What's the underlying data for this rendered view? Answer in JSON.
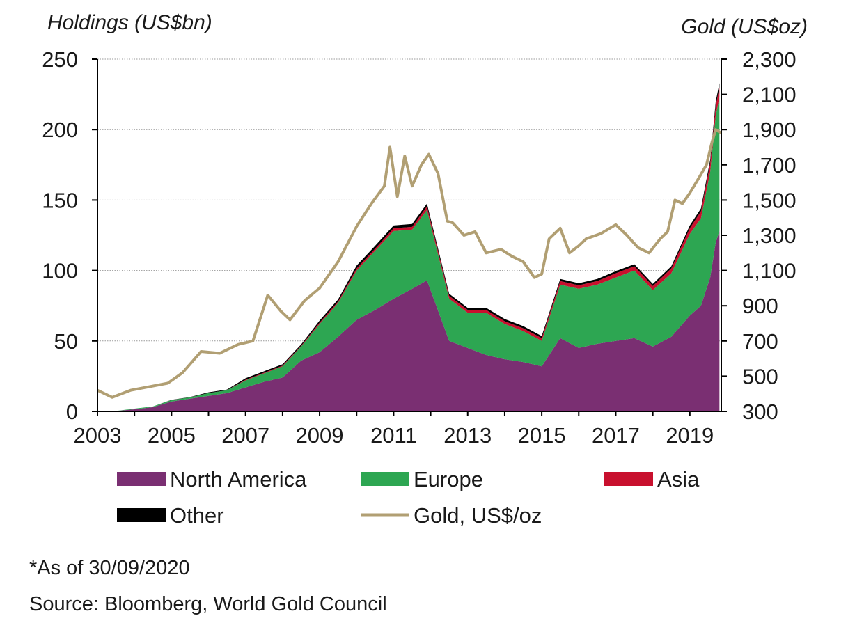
{
  "colors": {
    "north_america": "#7a2f72",
    "europe": "#2da652",
    "asia": "#c8102e",
    "other": "#000000",
    "gold": "#b19f73",
    "grid": "#9a9a9a",
    "axis": "#000000"
  },
  "notes": {
    "asof": "*As of 30/09/2020",
    "source": "Source: Bloomberg, World Gold Council"
  },
  "chart_data": {
    "type": "area",
    "stacked": true,
    "left_axis_title": "Holdings (US$bn)",
    "right_axis_title": "Gold (US$oz)",
    "x_ticks": [
      "2003",
      "2005",
      "2007",
      "2009",
      "2011",
      "2013",
      "2015",
      "2017",
      "2019"
    ],
    "y_left_ticks": [
      "0",
      "50",
      "100",
      "150",
      "200",
      "250"
    ],
    "y_right_ticks": [
      "300",
      "500",
      "700",
      "900",
      "1,100",
      "1,300",
      "1,500",
      "1,700",
      "1,900",
      "2,100",
      "2,300"
    ],
    "y_left_range": [
      0,
      250
    ],
    "y_right_range": [
      300,
      2300
    ],
    "x_range": [
      2003.0,
      2019.85
    ],
    "grid": "horizontal dotted",
    "legend_position": "bottom",
    "x": [
      2003.0,
      2003.5,
      2004.0,
      2004.5,
      2005.0,
      2005.5,
      2006.0,
      2006.5,
      2007.0,
      2007.5,
      2008.0,
      2008.5,
      2009.0,
      2009.5,
      2010.0,
      2010.5,
      2011.0,
      2011.5,
      2011.9,
      2012.5,
      2013.0,
      2013.5,
      2014.0,
      2014.5,
      2015.0,
      2015.5,
      2016.0,
      2016.5,
      2017.0,
      2017.5,
      2018.0,
      2018.5,
      2019.0,
      2019.3,
      2019.55,
      2019.7,
      2019.8
    ],
    "series": [
      {
        "name": "North America",
        "values": [
          0,
          0.3,
          1.5,
          3,
          7,
          9,
          11,
          13,
          17,
          21,
          24,
          36,
          42,
          53,
          65,
          72,
          80,
          87,
          93,
          50,
          45,
          40,
          37,
          35,
          32,
          52,
          45,
          48,
          50,
          52,
          46,
          53,
          68,
          75,
          95,
          120,
          128
        ]
      },
      {
        "name": "Europe",
        "values": [
          0,
          0,
          0.5,
          0.5,
          1,
          1,
          2,
          2,
          5,
          6,
          8,
          10,
          20,
          24,
          35,
          42,
          48,
          42,
          50,
          30,
          25,
          30,
          25,
          22,
          18,
          38,
          42,
          42,
          45,
          48,
          40,
          45,
          58,
          62,
          75,
          90,
          95
        ]
      },
      {
        "name": "Asia",
        "values": [
          0,
          0,
          0,
          0,
          0,
          0,
          0,
          0,
          0.5,
          0.5,
          0.5,
          0.5,
          1,
          1,
          1.5,
          1.5,
          2,
          2,
          2.5,
          2,
          2,
          2,
          2,
          2,
          2,
          2.5,
          2.5,
          2.5,
          3,
          3,
          3,
          3.5,
          4,
          5,
          6,
          7,
          7
        ]
      },
      {
        "name": "Other",
        "values": [
          0,
          0,
          0,
          0,
          0.2,
          0.2,
          0.5,
          0.5,
          1,
          1,
          1,
          1,
          1.5,
          1.5,
          2,
          2,
          2,
          2,
          2,
          1.5,
          1.5,
          1.5,
          1.5,
          1.5,
          1.5,
          1.5,
          1.5,
          1.5,
          1.5,
          1.5,
          1.5,
          1.5,
          2,
          2,
          2.5,
          3,
          3
        ]
      },
      {
        "name": "Gold, US$/oz",
        "axis": "right",
        "x": [
          2003.0,
          2003.4,
          2003.9,
          2004.4,
          2004.9,
          2005.3,
          2005.8,
          2006.3,
          2006.8,
          2007.2,
          2007.6,
          2007.95,
          2008.2,
          2008.6,
          2009.0,
          2009.5,
          2010.0,
          2010.4,
          2010.75,
          2010.9,
          2011.1,
          2011.3,
          2011.5,
          2011.75,
          2011.95,
          2012.2,
          2012.45,
          2012.6,
          2012.9,
          2013.2,
          2013.5,
          2013.9,
          2014.2,
          2014.5,
          2014.8,
          2015.0,
          2015.2,
          2015.5,
          2015.75,
          2016.0,
          2016.2,
          2016.6,
          2017.0,
          2017.3,
          2017.6,
          2017.9,
          2018.2,
          2018.4,
          2018.6,
          2018.8,
          2019.0,
          2019.2,
          2019.45,
          2019.6,
          2019.7,
          2019.85
        ],
        "values": [
          420,
          380,
          420,
          440,
          460,
          520,
          640,
          630,
          680,
          700,
          960,
          870,
          820,
          930,
          1000,
          1150,
          1350,
          1480,
          1580,
          1800,
          1520,
          1750,
          1580,
          1700,
          1760,
          1650,
          1380,
          1370,
          1300,
          1320,
          1200,
          1220,
          1180,
          1150,
          1060,
          1080,
          1280,
          1340,
          1200,
          1240,
          1280,
          1310,
          1360,
          1300,
          1230,
          1200,
          1280,
          1320,
          1500,
          1480,
          1540,
          1610,
          1700,
          1830,
          1900,
          1880
        ]
      }
    ]
  }
}
